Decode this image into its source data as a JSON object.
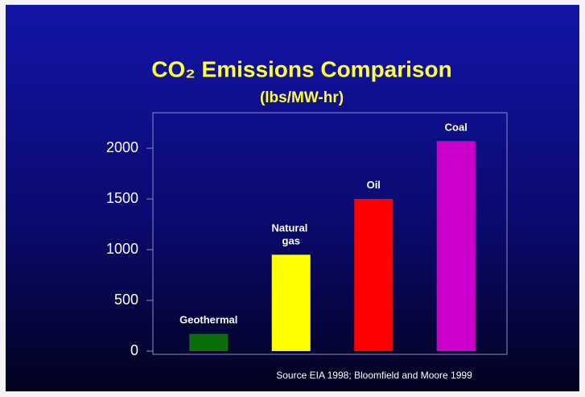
{
  "chart_data": {
    "type": "bar",
    "title": "CO₂ Emissions Comparison",
    "subtitle": "(lbs/MW-hr)",
    "categories": [
      "Geothermal",
      "Natural gas",
      "Oil",
      "Coal"
    ],
    "values": [
      170,
      950,
      1500,
      2070
    ],
    "colors": [
      "#0a6e0a",
      "#ffff00",
      "#ff0000",
      "#cc00cc"
    ],
    "ylim": [
      0,
      2350
    ],
    "yticks": [
      0,
      500,
      1000,
      1500,
      2000
    ],
    "grid": false,
    "source": "Source EIA 1998; Bloomfield and Moore 1999"
  }
}
